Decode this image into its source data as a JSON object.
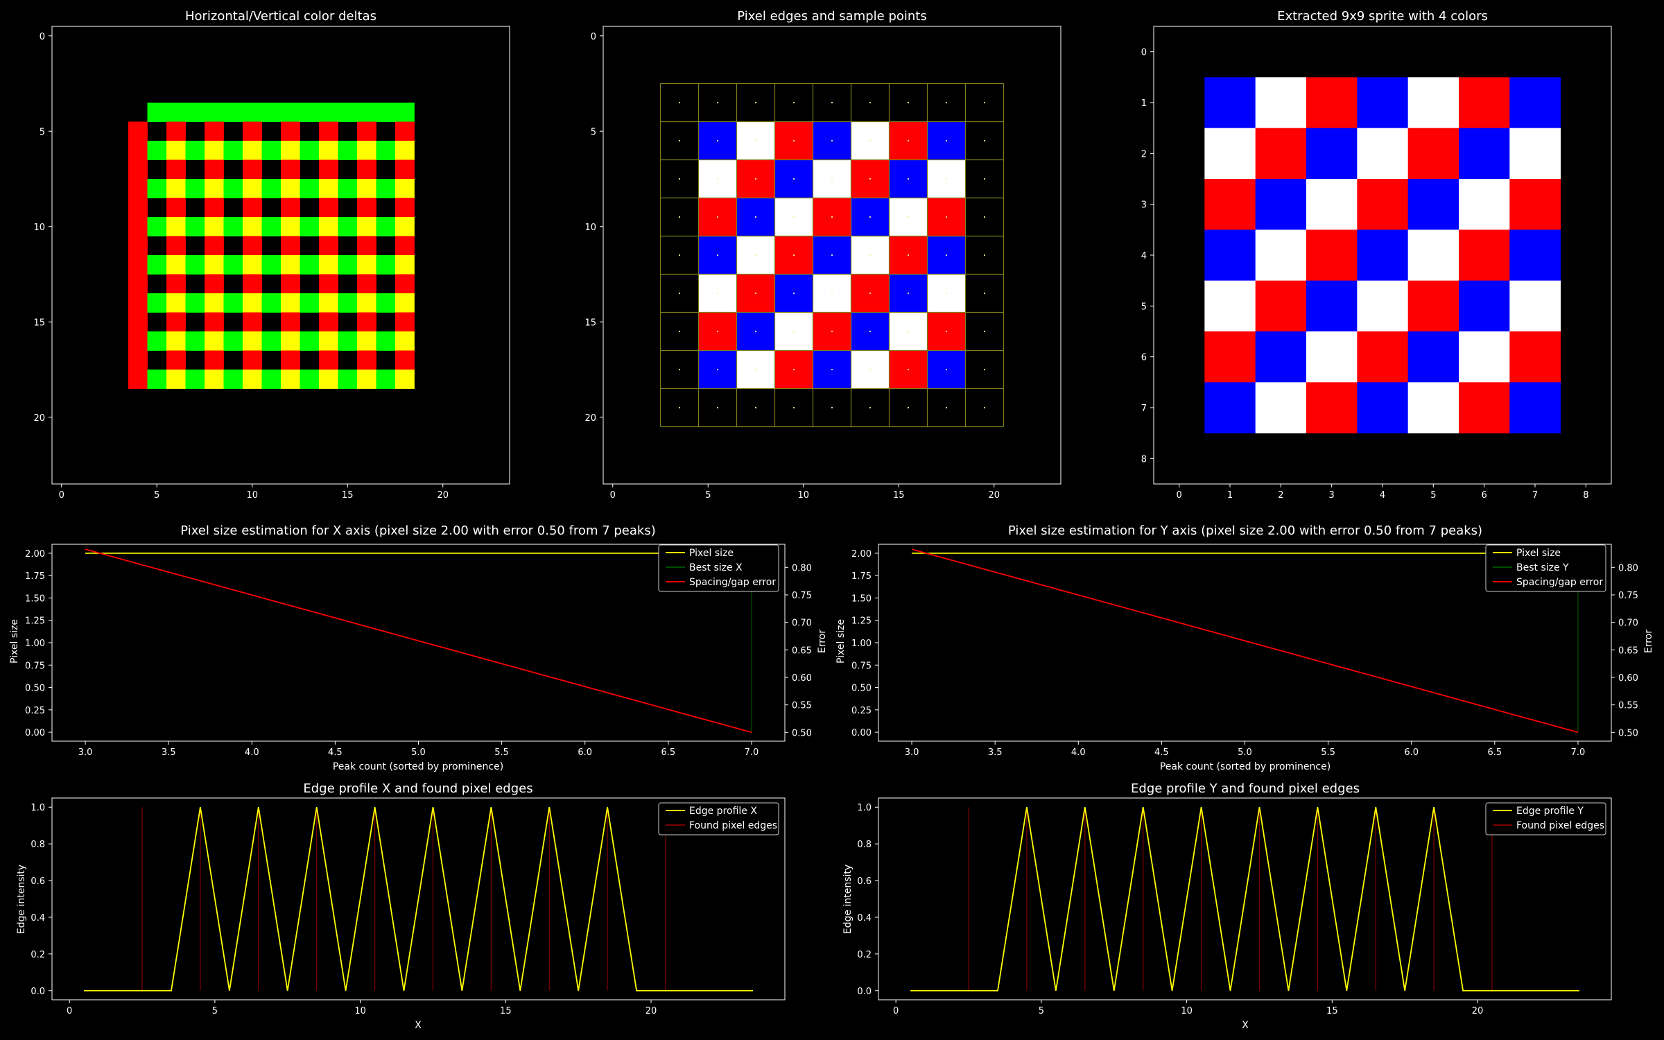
{
  "colors": {
    "background": "#000000",
    "frame": "#ffffff",
    "green": "#00ff00",
    "red": "#ff0000",
    "yellow": "#ffff00",
    "blue": "#0000ff",
    "white": "#ffffff",
    "edge_line": "#7a0000",
    "grid_line": "#7f7f1a",
    "best_line": "#004d00"
  },
  "chart_data": [
    {
      "type": "heatmap",
      "title": "Horizontal/Vertical color deltas",
      "xticks": [
        "0",
        "5",
        "10",
        "15",
        "20"
      ],
      "yticks": [
        "0",
        "5",
        "10",
        "15",
        "20"
      ],
      "xlim": [
        -0.5,
        23.5
      ],
      "ylim": [
        23.5,
        -0.5
      ],
      "pattern": {
        "top_bar": {
          "color": "green",
          "x": [
            4.5,
            18.5
          ],
          "y": [
            3.5,
            4.5
          ]
        },
        "left_bar": {
          "color": "red",
          "x": [
            3.5,
            4.5
          ],
          "y": [
            4.5,
            18.5
          ]
        },
        "checker": {
          "x": [
            4.5,
            18.5
          ],
          "y": [
            4.5,
            18.5
          ],
          "even_row": [
            "black",
            "red"
          ],
          "odd_row": [
            "green",
            "yellow"
          ]
        }
      }
    },
    {
      "type": "heatmap",
      "title": "Pixel edges and sample points",
      "xticks": [
        "0",
        "5",
        "10",
        "15",
        "20"
      ],
      "yticks": [
        "0",
        "5",
        "10",
        "15",
        "20"
      ],
      "xlim": [
        -0.5,
        23.5
      ],
      "ylim": [
        23.5,
        -0.5
      ],
      "grid_edges": [
        2.5,
        4.5,
        6.5,
        8.5,
        10.5,
        12.5,
        14.5,
        16.5,
        18.5,
        20.5
      ],
      "sprite": [
        [
          "black",
          "black",
          "black",
          "black",
          "black",
          "black",
          "black",
          "black",
          "black"
        ],
        [
          "black",
          "blue",
          "white",
          "red",
          "blue",
          "white",
          "red",
          "blue",
          "black"
        ],
        [
          "black",
          "white",
          "red",
          "blue",
          "white",
          "red",
          "blue",
          "white",
          "black"
        ],
        [
          "black",
          "red",
          "blue",
          "white",
          "red",
          "blue",
          "white",
          "red",
          "black"
        ],
        [
          "black",
          "blue",
          "white",
          "red",
          "blue",
          "white",
          "red",
          "blue",
          "black"
        ],
        [
          "black",
          "white",
          "red",
          "blue",
          "white",
          "red",
          "blue",
          "white",
          "black"
        ],
        [
          "black",
          "red",
          "blue",
          "white",
          "red",
          "blue",
          "white",
          "red",
          "black"
        ],
        [
          "black",
          "blue",
          "white",
          "red",
          "blue",
          "white",
          "red",
          "blue",
          "black"
        ],
        [
          "black",
          "black",
          "black",
          "black",
          "black",
          "black",
          "black",
          "black",
          "black"
        ]
      ]
    },
    {
      "type": "heatmap",
      "title": "Extracted 9x9 sprite with 4 colors",
      "xticks": [
        "0",
        "1",
        "2",
        "3",
        "4",
        "5",
        "6",
        "7",
        "8"
      ],
      "yticks": [
        "0",
        "1",
        "2",
        "3",
        "4",
        "5",
        "6",
        "7",
        "8"
      ],
      "xlim": [
        -0.5,
        8.5
      ],
      "ylim": [
        8.5,
        -0.5
      ]
    },
    {
      "type": "line",
      "title": "Pixel size estimation for X axis (pixel size 2.00 with error 0.50 from 7 peaks)",
      "xlabel": "Peak count (sorted by prominence)",
      "ylabel": "Pixel size",
      "y2label": "Error",
      "xlim": [
        2.8,
        7.2
      ],
      "ylim": [
        -0.1,
        2.1
      ],
      "y2lim": [
        0.484,
        0.842
      ],
      "xticks": [
        "3.0",
        "3.5",
        "4.0",
        "4.5",
        "5.0",
        "5.5",
        "6.0",
        "6.5",
        "7.0"
      ],
      "yticks": [
        "0.00",
        "0.25",
        "0.50",
        "0.75",
        "1.00",
        "1.25",
        "1.50",
        "1.75",
        "2.00"
      ],
      "y2ticks": [
        "0.50",
        "0.55",
        "0.60",
        "0.65",
        "0.70",
        "0.75",
        "0.80"
      ],
      "legend": "upper right",
      "series": [
        {
          "name": "Pixel size",
          "x": [
            3,
            7
          ],
          "y": [
            2.0,
            2.0
          ],
          "color": "yellow",
          "axis": "left"
        },
        {
          "name": "Best size X",
          "x": [
            7,
            7
          ],
          "y": [
            0,
            2.0
          ],
          "color": "best_line",
          "axis": "left"
        },
        {
          "name": "Spacing/gap error",
          "x": [
            3,
            7
          ],
          "y": [
            0.833,
            0.5
          ],
          "color": "red",
          "axis": "right"
        }
      ]
    },
    {
      "type": "line",
      "title": "Pixel size estimation for Y axis (pixel size 2.00 with error 0.50 from 7 peaks)",
      "xlabel": "Peak count (sorted by prominence)",
      "ylabel": "Pixel size",
      "y2label": "Error",
      "xlim": [
        2.8,
        7.2
      ],
      "ylim": [
        -0.1,
        2.1
      ],
      "y2lim": [
        0.484,
        0.842
      ],
      "xticks": [
        "3.0",
        "3.5",
        "4.0",
        "4.5",
        "5.0",
        "5.5",
        "6.0",
        "6.5",
        "7.0"
      ],
      "yticks": [
        "0.00",
        "0.25",
        "0.50",
        "0.75",
        "1.00",
        "1.25",
        "1.50",
        "1.75",
        "2.00"
      ],
      "y2ticks": [
        "0.50",
        "0.55",
        "0.60",
        "0.65",
        "0.70",
        "0.75",
        "0.80"
      ],
      "legend": "upper right",
      "series": [
        {
          "name": "Pixel size",
          "x": [
            3,
            7
          ],
          "y": [
            2.0,
            2.0
          ],
          "color": "yellow",
          "axis": "left"
        },
        {
          "name": "Best size Y",
          "x": [
            7,
            7
          ],
          "y": [
            0,
            2.0
          ],
          "color": "best_line",
          "axis": "left"
        },
        {
          "name": "Spacing/gap error",
          "x": [
            3,
            7
          ],
          "y": [
            0.833,
            0.5
          ],
          "color": "red",
          "axis": "right"
        }
      ]
    },
    {
      "type": "line",
      "title": "Edge profile X and found pixel edges",
      "xlabel": "X",
      "ylabel": "Edge intensity",
      "xlim": [
        -0.6,
        24.6
      ],
      "ylim": [
        -0.05,
        1.05
      ],
      "xticks": [
        "0",
        "5",
        "10",
        "15",
        "20"
      ],
      "yticks": [
        "0.0",
        "0.2",
        "0.4",
        "0.6",
        "0.8",
        "1.0"
      ],
      "legend": "upper right",
      "series": [
        {
          "name": "Edge profile X",
          "color": "yellow",
          "x": [
            0.5,
            1.5,
            2.5,
            3.5,
            4.5,
            5.5,
            6.5,
            7.5,
            8.5,
            9.5,
            10.5,
            11.5,
            12.5,
            13.5,
            14.5,
            15.5,
            16.5,
            17.5,
            18.5,
            19.5,
            20.5,
            21.5,
            22.5,
            23.5
          ],
          "y": [
            0,
            0,
            0,
            0,
            1,
            0,
            1,
            0,
            1,
            0,
            1,
            0,
            1,
            0,
            1,
            0,
            1,
            0,
            1,
            0,
            0,
            0,
            0,
            0
          ]
        },
        {
          "name": "Found pixel edges",
          "color": "edge_line",
          "edges": [
            2.5,
            4.5,
            6.5,
            8.5,
            10.5,
            12.5,
            14.5,
            16.5,
            18.5,
            20.5
          ]
        }
      ]
    },
    {
      "type": "line",
      "title": "Edge profile Y and found pixel edges",
      "xlabel": "X",
      "ylabel": "Edge intensity",
      "xlim": [
        -0.6,
        24.6
      ],
      "ylim": [
        -0.05,
        1.05
      ],
      "xticks": [
        "0",
        "5",
        "10",
        "15",
        "20"
      ],
      "yticks": [
        "0.0",
        "0.2",
        "0.4",
        "0.6",
        "0.8",
        "1.0"
      ],
      "legend": "upper right",
      "series": [
        {
          "name": "Edge profile Y",
          "color": "yellow",
          "x": [
            0.5,
            1.5,
            2.5,
            3.5,
            4.5,
            5.5,
            6.5,
            7.5,
            8.5,
            9.5,
            10.5,
            11.5,
            12.5,
            13.5,
            14.5,
            15.5,
            16.5,
            17.5,
            18.5,
            19.5,
            20.5,
            21.5,
            22.5,
            23.5
          ],
          "y": [
            0,
            0,
            0,
            0,
            1,
            0,
            1,
            0,
            1,
            0,
            1,
            0,
            1,
            0,
            1,
            0,
            1,
            0,
            1,
            0,
            0,
            0,
            0,
            0
          ]
        },
        {
          "name": "Found pixel edges",
          "color": "edge_line",
          "edges": [
            2.5,
            4.5,
            6.5,
            8.5,
            10.5,
            12.5,
            14.5,
            16.5,
            18.5,
            20.5
          ]
        }
      ]
    }
  ]
}
